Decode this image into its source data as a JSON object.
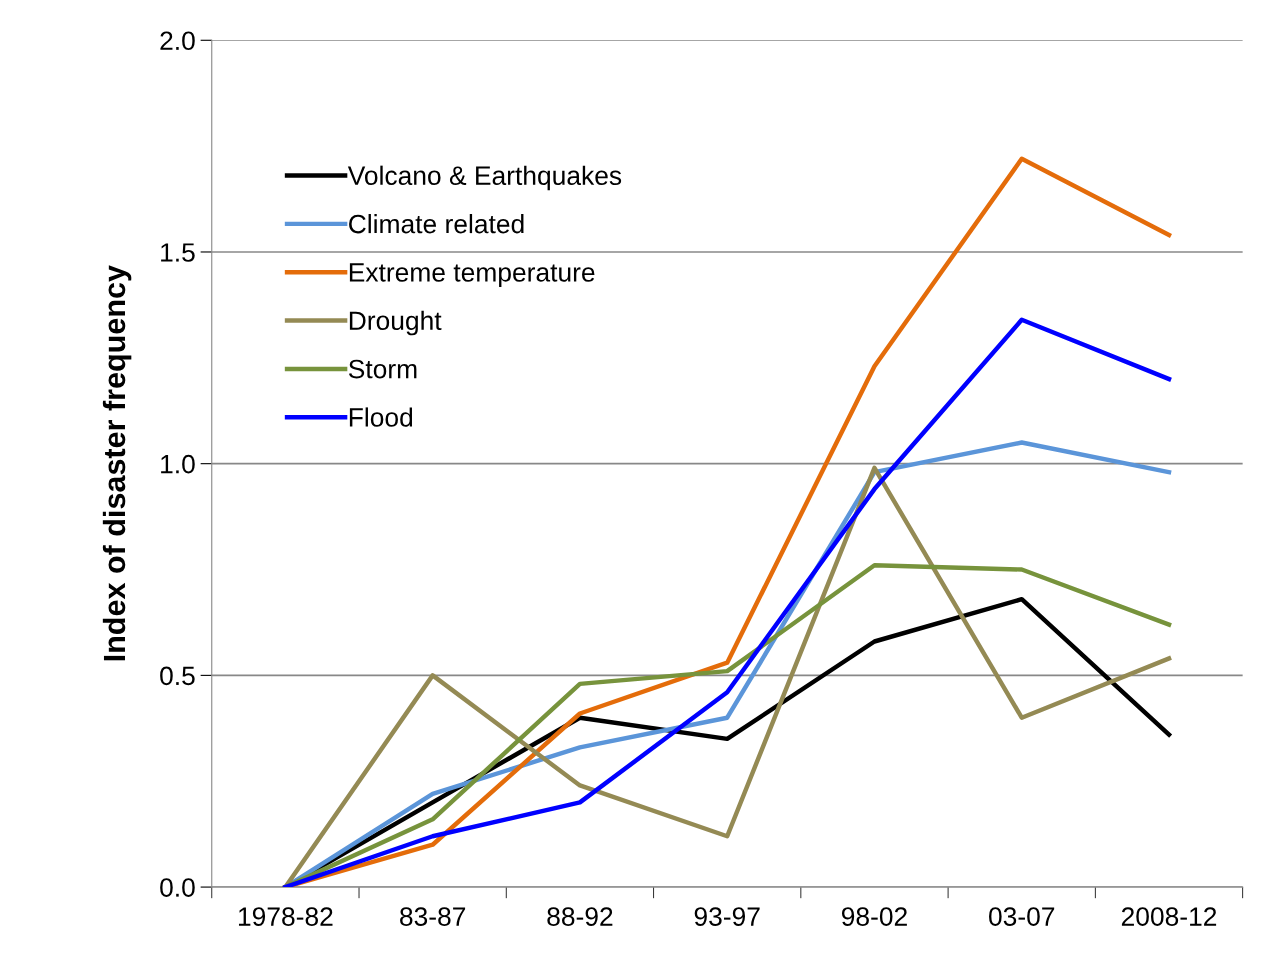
{
  "chart_data": {
    "type": "line",
    "ylabel": "Index of disaster frequency",
    "categories": [
      "1978-82",
      "83-87",
      "88-92",
      "93-97",
      "98-02",
      "03-07",
      "2008-12"
    ],
    "series": [
      {
        "name": "Volcano & Earthquakes",
        "color": "#000000",
        "values": [
          0,
          0.2,
          0.4,
          0.35,
          0.58,
          0.68,
          0.36
        ]
      },
      {
        "name": "Climate related",
        "color": "#5b95d9",
        "values": [
          0,
          0.22,
          0.33,
          0.4,
          0.98,
          1.05,
          0.98
        ]
      },
      {
        "name": "Extreme temperature",
        "color": "#e46c0a",
        "values": [
          0,
          0.1,
          0.41,
          0.53,
          1.23,
          1.72,
          1.54
        ]
      },
      {
        "name": "Drought",
        "color": "#948a54",
        "values": [
          0,
          0.5,
          0.24,
          0.12,
          0.99,
          0.4,
          0.54
        ]
      },
      {
        "name": "Storm",
        "color": "#77933c",
        "values": [
          0,
          0.16,
          0.48,
          0.51,
          0.76,
          0.75,
          0.62
        ]
      },
      {
        "name": "Flood",
        "color": "#0000ff",
        "values": [
          0,
          0.12,
          0.2,
          0.46,
          0.94,
          1.34,
          1.2
        ]
      }
    ],
    "ylim": [
      0,
      2
    ],
    "yticks": [
      {
        "value": 0,
        "label": "0.0"
      },
      {
        "value": 0.5,
        "label": "0.5"
      },
      {
        "value": 1,
        "label": "1.0"
      },
      {
        "value": 1.5,
        "label": "1.5"
      },
      {
        "value": 2,
        "label": "2.0"
      }
    ],
    "grid": "y",
    "legend": "top left",
    "marker": "none",
    "line_style": "solid"
  }
}
